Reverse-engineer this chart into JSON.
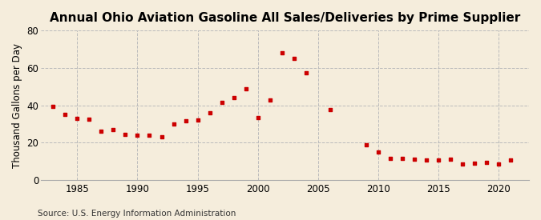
{
  "title": "Annual Ohio Aviation Gasoline All Sales/Deliveries by Prime Supplier",
  "ylabel": "Thousand Gallons per Day",
  "source": "Source: U.S. Energy Information Administration",
  "background_color": "#f5eddc",
  "marker_color": "#cc0000",
  "years": [
    1983,
    1984,
    1985,
    1986,
    1987,
    1988,
    1989,
    1990,
    1991,
    1992,
    1993,
    1994,
    1995,
    1996,
    1997,
    1998,
    1999,
    2000,
    2001,
    2002,
    2003,
    2004,
    2006,
    2009,
    2010,
    2011,
    2012,
    2013,
    2014,
    2015,
    2016,
    2017,
    2018,
    2019,
    2020,
    2021
  ],
  "values": [
    39.5,
    35.0,
    33.0,
    32.5,
    26.0,
    27.0,
    24.5,
    24.0,
    24.0,
    23.0,
    30.0,
    31.5,
    32.0,
    36.0,
    41.5,
    44.0,
    49.0,
    33.5,
    43.0,
    68.0,
    65.0,
    57.5,
    37.5,
    19.0,
    15.0,
    11.5,
    11.5,
    11.0,
    10.5,
    10.5,
    11.0,
    8.5,
    9.0,
    9.5,
    8.5,
    10.5
  ],
  "xlim": [
    1982,
    2022.5
  ],
  "ylim": [
    0,
    80
  ],
  "yticks": [
    0,
    20,
    40,
    60,
    80
  ],
  "xticks": [
    1985,
    1990,
    1995,
    2000,
    2005,
    2010,
    2015,
    2020
  ],
  "grid_color": "#bbbbbb",
  "title_fontsize": 11,
  "label_fontsize": 8.5,
  "source_fontsize": 7.5
}
